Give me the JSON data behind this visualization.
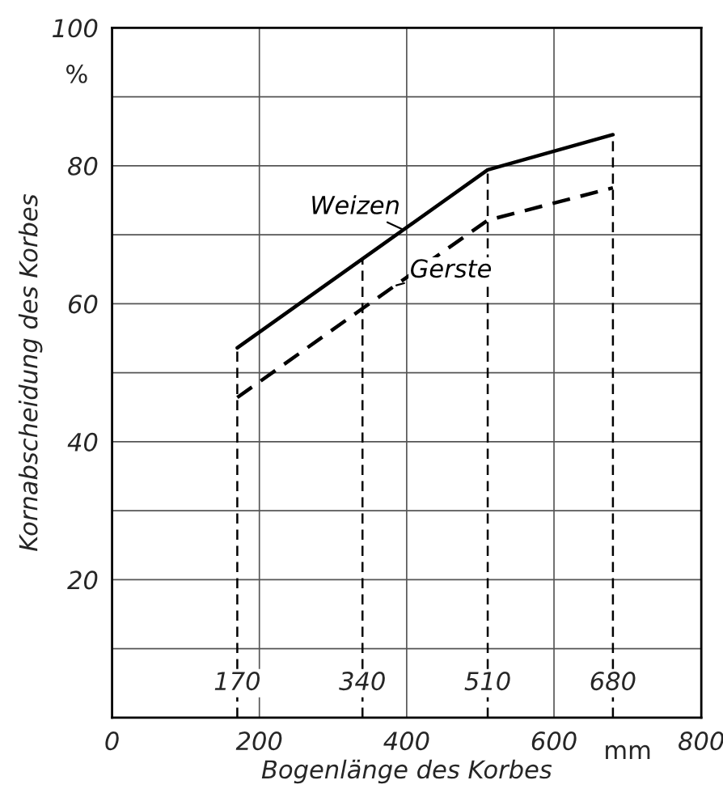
{
  "chart_data": {
    "type": "line",
    "xlabel": "Bogenlänge des Korbes",
    "ylabel": "Kornabscheidung des Korbes",
    "x": [
      170,
      340,
      510,
      680
    ],
    "series": [
      {
        "name": "Weizen",
        "color": "#000000",
        "line_style": "solid",
        "values": [
          53.6,
          66.5,
          79.4,
          84.5
        ]
      },
      {
        "name": "Gerste",
        "color": "#000000",
        "line_style": "dashed",
        "values": [
          46.4,
          59.3,
          72.1,
          76.8
        ]
      }
    ],
    "xlim": [
      0,
      800
    ],
    "xticks": [
      0,
      200,
      400,
      600,
      800
    ],
    "ylim": [
      0,
      100
    ],
    "yticks": [
      {
        "value": 0,
        "label": null
      },
      {
        "value": 10,
        "label": null
      },
      20,
      {
        "value": 30,
        "label": null
      },
      40,
      {
        "value": 50,
        "label": null
      },
      60,
      {
        "value": 70,
        "label": null
      },
      80,
      {
        "value": 90,
        "label": null
      },
      100
    ],
    "ref_lines": [
      {
        "axis": "x",
        "value": 170,
        "label": "170",
        "line_style": "dashed"
      },
      {
        "axis": "x",
        "value": 340,
        "label": "340",
        "line_style": "dashed"
      },
      {
        "axis": "x",
        "value": 510,
        "label": "510",
        "line_style": "dashed"
      },
      {
        "axis": "x",
        "value": 680,
        "label": "680",
        "line_style": "dashed"
      }
    ],
    "annotations": [
      "%",
      "mm"
    ],
    "grid": true,
    "marker": "none"
  }
}
